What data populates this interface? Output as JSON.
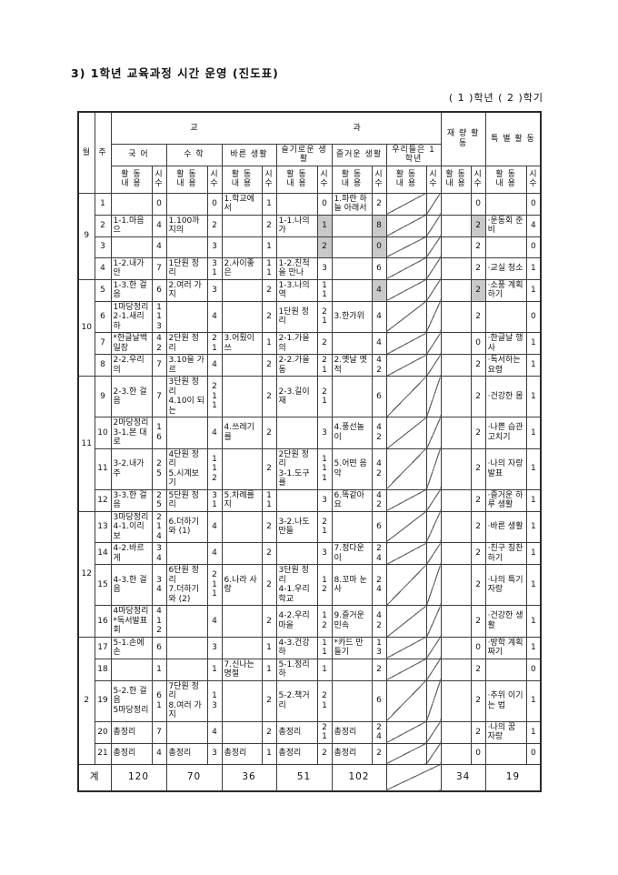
{
  "page": {
    "title": "3) 1학년  교육과정 시간 운영 (진도표)",
    "grade_semester": "( 1 )학년 ( 2 )학기"
  },
  "colors": {
    "shade": "#c9c9c9",
    "border": "#3c3c3c",
    "text": "#111111"
  },
  "table": {
    "header": {
      "month": "월",
      "week": "주",
      "group_left": "교",
      "group_right": "과",
      "subjects": [
        "국    어",
        "수    학",
        "바른 생활",
        "슬기로운 생활",
        "즐거운 생활",
        "우리들은 1학년"
      ],
      "discretionary": "재 량 활 동",
      "special": "특 별 활 동",
      "activity_label": "활 동\n내 용",
      "hours_label": "시\n수"
    },
    "months": [
      {
        "label": "9",
        "rows": 4
      },
      {
        "label": "10",
        "rows": 4
      },
      {
        "label": "11",
        "rows": 4
      },
      {
        "label": "12",
        "rows": 4
      },
      {
        "label": "2",
        "rows": 5
      }
    ],
    "rows": [
      {
        "week": "1",
        "kor": {
          "c": "",
          "h": "0"
        },
        "math": {
          "c": "",
          "h": "0"
        },
        "right": {
          "c": "1.학교에서",
          "h": "1"
        },
        "wise": {
          "c": "",
          "h": "0"
        },
        "joy": {
          "c": "1.파란 하늘 아래서",
          "h": "2"
        },
        "disc": {
          "c": "",
          "h": "0"
        },
        "spec": {
          "c": "",
          "h": "0"
        }
      },
      {
        "week": "2",
        "kor": {
          "c": "1-1.마음으",
          "h": "4"
        },
        "math": {
          "c": "1.100까지의",
          "h": "2"
        },
        "right": {
          "c": "",
          "h": "2"
        },
        "wise": {
          "c": "1-1.나의 가",
          "h": "1",
          "hs": true
        },
        "joy": {
          "c": "",
          "h": "8",
          "hs": true
        },
        "disc": {
          "c": "",
          "h": "2",
          "hs": true
        },
        "spec": {
          "c": "·운동회 준비",
          "h": "4"
        }
      },
      {
        "week": "3",
        "kor": {
          "c": "",
          "h": "4"
        },
        "math": {
          "c": "",
          "h": "3"
        },
        "right": {
          "c": "",
          "h": "1"
        },
        "wise": {
          "c": "",
          "h": "2",
          "hs": true
        },
        "joy": {
          "c": "",
          "h": "0",
          "hs": true
        },
        "disc": {
          "c": "",
          "h": "2"
        },
        "spec": {
          "c": "",
          "h": "0"
        }
      },
      {
        "week": "4",
        "kor": {
          "c": "1-2.내가 안",
          "h": "7"
        },
        "math": {
          "c": "1단원 정리",
          "h": "3\n1"
        },
        "right": {
          "c": "2.사이좋은",
          "h": "1\n1"
        },
        "wise": {
          "c": "1-2.친척을 만나",
          "h": "3"
        },
        "joy": {
          "c": "",
          "h": "6"
        },
        "disc": {
          "c": "",
          "h": "2"
        },
        "spec": {
          "c": "·교실 청소",
          "h": "1"
        }
      },
      {
        "week": "5",
        "kor": {
          "c": "1-3.한 걸음",
          "h": "6"
        },
        "math": {
          "c": "2.여러 가지",
          "h": "3"
        },
        "right": {
          "c": "",
          "h": "2"
        },
        "wise": {
          "c": "1-3.나의 역",
          "h": "1\n1"
        },
        "joy": {
          "c": "",
          "h": "4",
          "hs": true
        },
        "disc": {
          "c": "",
          "h": "2",
          "hs": true
        },
        "spec": {
          "c": "·소풍 계획 하기",
          "h": "1"
        }
      },
      {
        "week": "6",
        "kor": {
          "c": "1마당정리\n2-1.새리하",
          "h": "1\n1\n3"
        },
        "math": {
          "c": "",
          "h": "4"
        },
        "right": {
          "c": "",
          "h": "2"
        },
        "wise": {
          "c": "1단원 정리",
          "h": "2\n1"
        },
        "joy": {
          "c": "3.한가위",
          "h": "4"
        },
        "disc": {
          "c": "",
          "h": "2"
        },
        "spec": {
          "c": "",
          "h": "0"
        }
      },
      {
        "week": "7",
        "kor": {
          "c": "*한글날백일장",
          "h": "4\n2"
        },
        "math": {
          "c": "2단원 정리",
          "h": "2\n1"
        },
        "right": {
          "c": "3.어뤘이 쓰",
          "h": "1"
        },
        "wise": {
          "c": "2-1.가을의",
          "h": "2"
        },
        "joy": {
          "c": "",
          "h": "4"
        },
        "disc": {
          "c": "",
          "h": "0"
        },
        "spec": {
          "c": "·한글날 행사",
          "h": "1"
        }
      },
      {
        "week": "8",
        "kor": {
          "c": "2-2.우리의",
          "h": "7"
        },
        "math": {
          "c": "3.10을 가르",
          "h": "4"
        },
        "right": {
          "c": "",
          "h": "2"
        },
        "wise": {
          "c": "2-2.가을 동",
          "h": "2\n1"
        },
        "joy": {
          "c": "2.옛날 옛적",
          "h": "4\n2"
        },
        "disc": {
          "c": "",
          "h": "2"
        },
        "spec": {
          "c": "·독서하는 요령",
          "h": "1"
        }
      },
      {
        "week": "9",
        "kor": {
          "c": "2-3.한 걸음",
          "h": "7"
        },
        "math": {
          "c": "3단원 정리\n4.10이 되는",
          "h": "2\n1\n1"
        },
        "right": {
          "c": "",
          "h": "2"
        },
        "wise": {
          "c": "2-3.길이 재",
          "h": "2\n1"
        },
        "joy": {
          "c": "",
          "h": "6"
        },
        "disc": {
          "c": "",
          "h": "2"
        },
        "spec": {
          "c": "·건강한 몸",
          "h": "1"
        }
      },
      {
        "week": "10",
        "kor": {
          "c": "2마당정리\n3-1.본 대로",
          "h": "1\n6"
        },
        "math": {
          "c": "",
          "h": "4"
        },
        "right": {
          "c": "4.쓰레기를",
          "h": "2"
        },
        "wise": {
          "c": "",
          "h": "3"
        },
        "joy": {
          "c": "4.풍선놀이",
          "h": "4\n2"
        },
        "disc": {
          "c": "",
          "h": "2"
        },
        "spec": {
          "c": "·나쁜 습관 고치기",
          "h": "1"
        }
      },
      {
        "week": "11",
        "kor": {
          "c": "3-2.내가 주",
          "h": "2\n5"
        },
        "math": {
          "c": "4단원 정리\n5.시계보기",
          "h": "1\n1\n2"
        },
        "right": {
          "c": "",
          "h": "2"
        },
        "wise": {
          "c": "2단원 정리\n3-1.도구를",
          "h": "1\n1\n1"
        },
        "joy": {
          "c": "5.어떤 음악",
          "h": "4\n2"
        },
        "disc": {
          "c": "",
          "h": "2"
        },
        "spec": {
          "c": "·나의 자랑 발표",
          "h": "1"
        }
      },
      {
        "week": "12",
        "kor": {
          "c": "3-3.한 걸음",
          "h": "2\n5"
        },
        "math": {
          "c": "5단원 정리",
          "h": "3\n1"
        },
        "right": {
          "c": "5.차례를 지",
          "h": "1\n1"
        },
        "wise": {
          "c": "",
          "h": "3"
        },
        "joy": {
          "c": "6.똑같아요",
          "h": "4\n2"
        },
        "disc": {
          "c": "",
          "h": "2"
        },
        "spec": {
          "c": "·즐거운 하루 생활",
          "h": "1"
        }
      },
      {
        "week": "13",
        "kor": {
          "c": "3마당정리\n4-1.이리 보",
          "h": "2\n1\n4"
        },
        "math": {
          "c": "6.더하기와 (1)",
          "h": "4"
        },
        "right": {
          "c": "",
          "h": "2"
        },
        "wise": {
          "c": "3-2.나도 만들",
          "h": "2\n1"
        },
        "joy": {
          "c": "",
          "h": "6"
        },
        "disc": {
          "c": "",
          "h": "2"
        },
        "spec": {
          "c": "·바른 생활",
          "h": "1"
        }
      },
      {
        "week": "14",
        "kor": {
          "c": "4-2.바르게",
          "h": "3\n4"
        },
        "math": {
          "c": "",
          "h": "4"
        },
        "right": {
          "c": "",
          "h": "2"
        },
        "wise": {
          "c": "",
          "h": "3"
        },
        "joy": {
          "c": "7.정다운 이",
          "h": "2\n4"
        },
        "disc": {
          "c": "",
          "h": "2"
        },
        "spec": {
          "c": "·친구 칭찬하기",
          "h": "1"
        }
      },
      {
        "week": "15",
        "kor": {
          "c": "4-3.한 걸음",
          "h": "3\n4"
        },
        "math": {
          "c": "6단원 정리\n7.더하기와 (2)",
          "h": "2\n1\n1"
        },
        "right": {
          "c": "6.나라 사랑",
          "h": "2"
        },
        "wise": {
          "c": "3단원 정리\n4-1.우리 학교",
          "h": "1\n2"
        },
        "joy": {
          "c": "8.꼬마 눈사",
          "h": "2\n4"
        },
        "disc": {
          "c": "",
          "h": "2"
        },
        "spec": {
          "c": "·나의 특기자랑",
          "h": "1"
        }
      },
      {
        "week": "16",
        "kor": {
          "c": "4마당정리\n*독서발표회",
          "h": "4\n1\n2"
        },
        "math": {
          "c": "",
          "h": "4"
        },
        "right": {
          "c": "",
          "h": "2"
        },
        "wise": {
          "c": "4-2.우리 마을",
          "h": "1\n2"
        },
        "joy": {
          "c": "9.즐거운 민속",
          "h": "4\n2"
        },
        "disc": {
          "c": "",
          "h": "2"
        },
        "spec": {
          "c": "·건강한 생활",
          "h": "1"
        }
      },
      {
        "week": "17",
        "kor": {
          "c": "5-1.손에 손",
          "h": "6"
        },
        "math": {
          "c": "",
          "h": "3"
        },
        "right": {
          "c": "",
          "h": "1"
        },
        "wise": {
          "c": "4-3.건강하",
          "h": "1\n1"
        },
        "joy": {
          "c": "*카드 만들기",
          "h": "1\n3"
        },
        "disc": {
          "c": "",
          "h": "0"
        },
        "spec": {
          "c": "·방학 계획 짜기",
          "h": "1"
        }
      },
      {
        "week": "18",
        "kor": {
          "c": "",
          "h": "1"
        },
        "math": {
          "c": "",
          "h": "1"
        },
        "right": {
          "c": "7.신나는명절",
          "h": "1"
        },
        "wise": {
          "c": "5-1.정리하",
          "h": "1"
        },
        "joy": {
          "c": "",
          "h": "2"
        },
        "disc": {
          "c": "",
          "h": "2"
        },
        "spec": {
          "c": "",
          "h": "0"
        }
      },
      {
        "week": "19",
        "kor": {
          "c": "5-2.한 걸음\n5마당정리",
          "h": "6\n1"
        },
        "math": {
          "c": "7단원 정리\n8.여러 가지",
          "h": "1\n3"
        },
        "right": {
          "c": "",
          "h": "2"
        },
        "wise": {
          "c": "5-2.책거리",
          "h": "2\n1"
        },
        "joy": {
          "c": "",
          "h": "6"
        },
        "disc": {
          "c": "",
          "h": "2"
        },
        "spec": {
          "c": "·추위 이기는 법",
          "h": "1"
        }
      },
      {
        "week": "20",
        "kor": {
          "c": "총정리",
          "h": "7"
        },
        "math": {
          "c": "",
          "h": "4"
        },
        "right": {
          "c": "",
          "h": "2"
        },
        "wise": {
          "c": "총정리",
          "h": "2\n1"
        },
        "joy": {
          "c": "총정리",
          "h": "2\n4"
        },
        "disc": {
          "c": "",
          "h": "2"
        },
        "spec": {
          "c": "·나의 꿈 자랑",
          "h": "1"
        }
      },
      {
        "week": "21",
        "kor": {
          "c": "총정리",
          "h": "4"
        },
        "math": {
          "c": "총정리",
          "h": "3"
        },
        "right": {
          "c": "총정리",
          "h": "1"
        },
        "wise": {
          "c": "총정리",
          "h": "2"
        },
        "joy": {
          "c": "총정리",
          "h": "2"
        },
        "disc": {
          "c": "",
          "h": "0"
        },
        "spec": {
          "c": "",
          "h": "0"
        }
      }
    ],
    "total": {
      "label": "계",
      "values": [
        "120",
        "70",
        "36",
        "51",
        "102",
        "",
        "34",
        "19"
      ]
    }
  }
}
